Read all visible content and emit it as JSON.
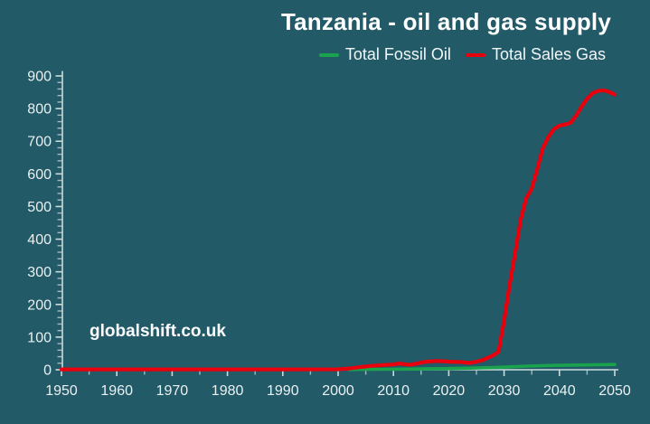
{
  "page": {
    "background": "#225a68"
  },
  "header": {
    "title": "Tanzania - oil and gas supply"
  },
  "watermark": {
    "text": "globalshift.co.uk"
  },
  "chart_data": {
    "type": "line",
    "title": "Tanzania - oil and gas supply",
    "xlabel": "",
    "ylabel": "",
    "xlim": [
      1950,
      2050
    ],
    "ylim": [
      0,
      900
    ],
    "x_ticks": [
      1950,
      1960,
      1970,
      1980,
      1990,
      2000,
      2010,
      2020,
      2030,
      2040,
      2050
    ],
    "x_minor_tick_step": 5,
    "y_ticks": [
      0,
      100,
      200,
      300,
      400,
      500,
      600,
      700,
      800,
      900
    ],
    "y_minor_tick_step": 20,
    "grid": false,
    "legend_position": "top-right",
    "colors": {
      "background": "#225a68",
      "axis": "#ccd9dd",
      "tick_labels": "#eaf1f2",
      "title": "#ffffff"
    },
    "series": [
      {
        "name": "Total Fossil Oil",
        "color": "#19a34d",
        "points": [
          [
            2002,
            0.5
          ],
          [
            2004,
            1
          ],
          [
            2008,
            1.5
          ],
          [
            2012,
            2
          ],
          [
            2016,
            3
          ],
          [
            2020,
            3.5
          ],
          [
            2024,
            5
          ],
          [
            2028,
            7
          ],
          [
            2030,
            8
          ],
          [
            2032,
            9.5
          ],
          [
            2034,
            11
          ],
          [
            2036,
            12
          ],
          [
            2038,
            13
          ],
          [
            2040,
            13.5
          ],
          [
            2043,
            14.5
          ],
          [
            2046,
            15
          ],
          [
            2050,
            16
          ]
        ]
      },
      {
        "name": "Total Sales Gas",
        "color": "#e8000d",
        "points": [
          [
            1950,
            1
          ],
          [
            1960,
            1
          ],
          [
            1970,
            1
          ],
          [
            1980,
            1
          ],
          [
            1990,
            1
          ],
          [
            2000,
            1.5
          ],
          [
            2002,
            4
          ],
          [
            2004,
            8
          ],
          [
            2006,
            12
          ],
          [
            2008,
            14
          ],
          [
            2010,
            16
          ],
          [
            2011,
            19
          ],
          [
            2012,
            17
          ],
          [
            2013,
            15
          ],
          [
            2014,
            18
          ],
          [
            2015,
            22
          ],
          [
            2016,
            25
          ],
          [
            2017,
            26
          ],
          [
            2018,
            27
          ],
          [
            2019,
            26
          ],
          [
            2020,
            25
          ],
          [
            2021,
            24
          ],
          [
            2022,
            24
          ],
          [
            2023,
            22
          ],
          [
            2024,
            21
          ],
          [
            2025,
            25
          ],
          [
            2026,
            29
          ],
          [
            2027,
            36
          ],
          [
            2028,
            44
          ],
          [
            2029,
            55
          ],
          [
            2030,
            150
          ],
          [
            2031,
            260
          ],
          [
            2032,
            357
          ],
          [
            2033,
            460
          ],
          [
            2034,
            525
          ],
          [
            2035,
            555
          ],
          [
            2036,
            615
          ],
          [
            2037,
            678
          ],
          [
            2038,
            713
          ],
          [
            2039,
            737
          ],
          [
            2040,
            748
          ],
          [
            2041,
            751
          ],
          [
            2042,
            756
          ],
          [
            2043,
            778
          ],
          [
            2044,
            806
          ],
          [
            2045,
            830
          ],
          [
            2046,
            847
          ],
          [
            2047,
            854
          ],
          [
            2048,
            856
          ],
          [
            2049,
            851
          ],
          [
            2050,
            843
          ]
        ]
      }
    ]
  }
}
